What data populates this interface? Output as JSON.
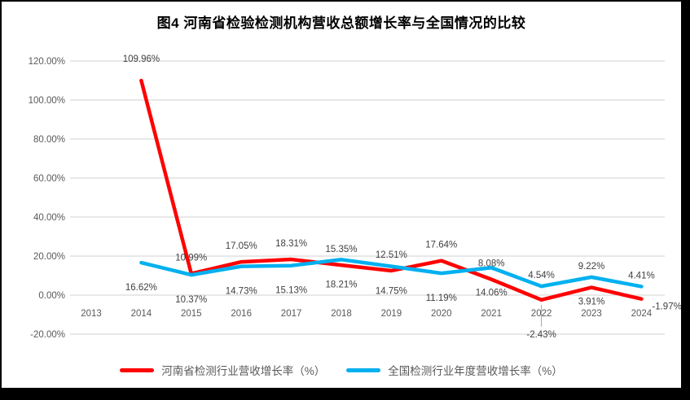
{
  "title": "图4  河南省检验检测机构营收总额增长率与全国情况的比较",
  "chart_data": {
    "type": "line",
    "categories": [
      "2013",
      "2014",
      "2015",
      "2016",
      "2017",
      "2018",
      "2019",
      "2020",
      "2021",
      "2022",
      "2023",
      "2024"
    ],
    "y_ticks": [
      "120.00%",
      "100.00%",
      "80.00%",
      "60.00%",
      "40.00%",
      "20.00%",
      "0.00%",
      "-20.00%"
    ],
    "ylim": [
      -20,
      120
    ],
    "grid": true,
    "legend_position": "bottom",
    "series": [
      {
        "name": "河南省检测行业营收增长率（%）",
        "color": "#FF0000",
        "values": [
          null,
          109.96,
          10.99,
          17.05,
          18.31,
          15.35,
          12.51,
          17.64,
          8.08,
          -2.43,
          3.91,
          -1.97
        ],
        "labels": [
          null,
          "109.96%",
          "10.99%",
          "17.05%",
          "18.31%",
          "15.35%",
          "12.51%",
          "17.64%",
          "8.08%",
          "-2.43%",
          "3.91%",
          "-1.97%"
        ],
        "label_pos": [
          null,
          "above-far",
          "above",
          "above",
          "above",
          "above",
          "above",
          "above",
          "above",
          "below-leader",
          "below",
          "right"
        ]
      },
      {
        "name": "全国检测行业年度营收增长率（%）",
        "color": "#00B0F0",
        "values": [
          null,
          16.62,
          10.37,
          14.73,
          15.13,
          18.21,
          14.75,
          11.19,
          14.06,
          4.54,
          9.22,
          4.41
        ],
        "labels": [
          null,
          "16.62%",
          "10.37%",
          "14.73%",
          "15.13%",
          "18.21%",
          "14.75%",
          "11.19%",
          "14.06%",
          "4.54%",
          "9.22%",
          "4.41%"
        ],
        "label_pos": [
          null,
          "below-far",
          "below-far",
          "below-far",
          "below-far",
          "below-far",
          "below-far",
          "below-far",
          "below-far",
          "above-near",
          "above-near",
          "above-near"
        ]
      }
    ]
  }
}
